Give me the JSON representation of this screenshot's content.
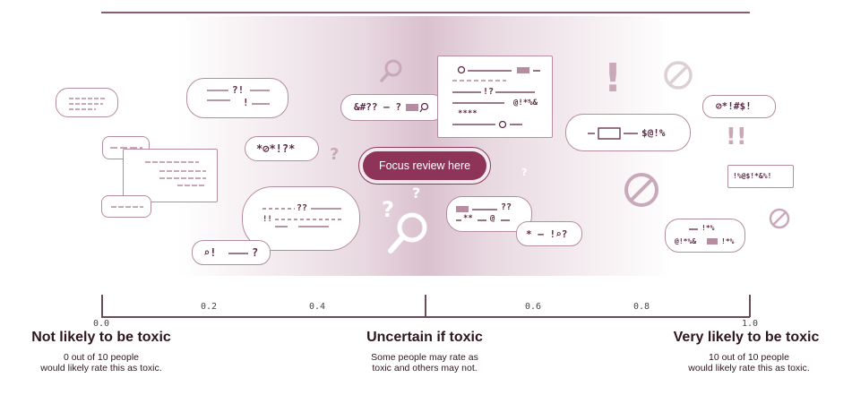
{
  "focus_button": {
    "label": "Focus review here"
  },
  "axis": {
    "ticks": [
      "0.0",
      "0.2",
      "0.4",
      "0.6",
      "0.8",
      "1.0"
    ]
  },
  "categories": [
    {
      "title": "Not likely to be toxic",
      "desc_line1": "0 out of 10 people",
      "desc_line2": "would likely rate this as toxic."
    },
    {
      "title": "Uncertain if toxic",
      "desc_line1": "Some people may rate as",
      "desc_line2": "toxic and others may not."
    },
    {
      "title": "Very likely to be toxic",
      "desc_line1": "10 out of 10 people",
      "desc_line2": "would likely rate this as toxic."
    }
  ],
  "bubbles": {
    "b1": "?!",
    "b1b": "!",
    "b2": "*⊘*!?*",
    "b3": "&#?? – ?",
    "b4a": "!?",
    "b4b": "@!*%&",
    "b4c": "****",
    "b5": "$@!%",
    "b6": "⊘*!#$!",
    "b7": "!%@$!*&%!",
    "b8a": "??",
    "b8b": "!!",
    "b9": "⌕!",
    "b9b": "?",
    "b10a": "??",
    "b10b": "**",
    "b10c": "@",
    "b11": "* — !⌕?",
    "b12a": "!*%",
    "b12b": "@!*%&",
    "b12c": "!*%"
  },
  "symbols": {
    "q1": "?",
    "q2": "?",
    "q3": "?",
    "q4": "?",
    "excl": "!",
    "excl2": "!!"
  }
}
